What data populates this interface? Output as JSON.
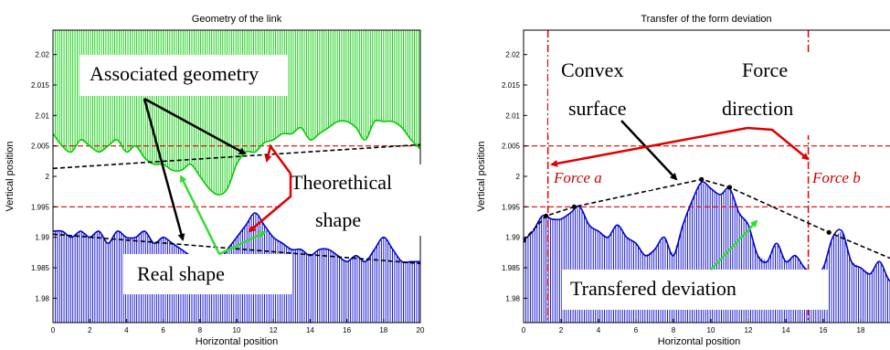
{
  "chart_data": [
    {
      "type": "line",
      "title": "Geometry of the link",
      "xlabel": "Horizontal position",
      "ylabel": "Vertical position",
      "xlim": [
        0,
        20
      ],
      "ylim": [
        1.976,
        2.024
      ],
      "xticks": [
        0,
        2,
        4,
        6,
        8,
        10,
        12,
        14,
        16,
        18,
        20
      ],
      "yticks": [
        1.98,
        1.985,
        1.99,
        1.995,
        2,
        2.005,
        2.01,
        2.015,
        2.02
      ],
      "ytick_labels": [
        "1.98",
        "1.985",
        "1.99",
        "1.995",
        "2",
        "2.005",
        "2.01",
        "2.015",
        "2.02"
      ],
      "reference_lines": [
        2.005,
        1.995
      ],
      "series": [
        {
          "x": [
            0,
            0.5,
            1,
            1.5,
            2,
            2.5,
            3,
            3.5,
            4,
            4.5,
            5,
            5.5,
            6,
            6.5,
            7,
            7.5,
            8,
            8.5,
            9,
            9.5,
            10,
            10.5,
            11,
            11.5,
            12,
            12.5,
            13,
            13.5,
            14,
            14.5,
            15,
            15.5,
            16,
            16.5,
            17,
            17.5,
            18,
            18.5,
            19,
            19.5,
            20
          ],
          "y": [
            2.007,
            2.005,
            2.004,
            2.006,
            2.005,
            2.004,
            2.005,
            2.006,
            2.004,
            2.005,
            2.003,
            2.002,
            2.002,
            2.001,
            2.001,
            2.002,
            2.0,
            1.998,
            1.997,
            1.998,
            2.002,
            2.004,
            2.004,
            2.0055,
            2.006,
            2.007,
            2.007,
            2.008,
            2.006,
            2.007,
            2.008,
            2.009,
            2.009,
            2.008,
            2.006,
            2.009,
            2.009,
            2.009,
            2.008,
            2.006,
            2.0045
          ],
          "color": "#00cc00"
        },
        {
          "x": [
            0,
            0.5,
            1,
            1.5,
            2,
            2.5,
            3,
            3.5,
            4,
            4.5,
            5,
            5.5,
            6,
            6.5,
            7,
            7.5,
            8,
            8.5,
            9,
            9.5,
            10,
            10.5,
            11,
            11.5,
            12,
            12.5,
            13,
            13.5,
            14,
            14.5,
            15,
            15.5,
            16,
            16.5,
            17,
            17.5,
            18,
            18.5,
            19,
            19.5,
            20
          ],
          "y": [
            1.991,
            1.991,
            1.99,
            1.991,
            1.99,
            1.991,
            1.989,
            1.991,
            1.99,
            1.99,
            1.991,
            1.989,
            1.99,
            1.989,
            1.988,
            1.987,
            1.987,
            1.986,
            1.986,
            1.988,
            1.99,
            1.992,
            1.994,
            1.992,
            1.99,
            1.989,
            1.988,
            1.988,
            1.987,
            1.988,
            1.988,
            1.987,
            1.986,
            1.987,
            1.986,
            1.988,
            1.99,
            1.988,
            1.986,
            1.986,
            1.986
          ],
          "color": "#0000cc"
        },
        {
          "x": [
            0,
            20
          ],
          "y": [
            2.0013,
            2.0052
          ],
          "color": "#000000",
          "style": "dashed"
        },
        {
          "x": [
            0,
            20
          ],
          "y": [
            1.9905,
            1.9857
          ],
          "color": "#000000",
          "style": "dashed"
        }
      ],
      "annotations": {
        "associated_geometry": "Associated geometry",
        "theoretical_line1": "Theorethical",
        "theoretical_line2": "shape",
        "real_shape": "Real shape"
      }
    },
    {
      "type": "line",
      "title": "Transfer of the form deviation",
      "xlabel": "Horizontal position",
      "ylabel": "Vertical position",
      "xlim": [
        0,
        20
      ],
      "ylim": [
        1.976,
        2.024
      ],
      "xticks": [
        0,
        2,
        4,
        6,
        8,
        10,
        12,
        14,
        16,
        18,
        20
      ],
      "xtick_labels": [
        "0",
        "2",
        "4",
        "6",
        "8",
        "10",
        "12",
        "14",
        "16",
        "18",
        "20"
      ],
      "yticks": [
        1.98,
        1.985,
        1.99,
        1.995,
        2,
        2.005,
        2.01,
        2.015,
        2.02
      ],
      "ytick_labels": [
        "1.98",
        "1.985",
        "1.99",
        "1.995",
        "2",
        "2.005",
        "2.01",
        "2.015",
        "2.02"
      ],
      "reference_lines": [
        2.005,
        1.995
      ],
      "force_positions": [
        1.3,
        15.2
      ],
      "series": [
        {
          "x": [
            0,
            0.5,
            1,
            1.5,
            2,
            2.5,
            3,
            3.5,
            4,
            4.5,
            5,
            5.5,
            6,
            6.5,
            7,
            7.5,
            8,
            8.5,
            9,
            9.5,
            10,
            10.5,
            11,
            11.5,
            12,
            12.5,
            13,
            13.5,
            14,
            14.5,
            15,
            15.5,
            16,
            16.5,
            17,
            17.5,
            18,
            18.5,
            19,
            19.5,
            20
          ],
          "y": [
            1.9895,
            1.991,
            1.9935,
            1.993,
            1.993,
            1.994,
            1.995,
            1.992,
            1.991,
            1.99,
            1.992,
            1.99,
            1.989,
            1.987,
            1.988,
            1.99,
            1.987,
            1.992,
            1.996,
            1.999,
            1.998,
            1.997,
            1.998,
            1.994,
            1.992,
            1.987,
            1.986,
            1.989,
            1.986,
            1.987,
            1.985,
            1.984,
            1.985,
            1.99,
            1.991,
            1.986,
            1.985,
            1.984,
            1.986,
            1.983,
            1.982
          ],
          "color": "#0000cc"
        },
        {
          "x": [
            0,
            1.2,
            2.7,
            9.5,
            11.0,
            16.3,
            20
          ],
          "y": [
            1.9895,
            1.9935,
            1.995,
            1.9995,
            1.9982,
            1.9908,
            1.986
          ],
          "color": "#000000",
          "style": "dashed"
        }
      ],
      "annotations": {
        "convex_line1": "Convex",
        "convex_line2": "surface",
        "force_line1": "Force",
        "force_line2": "direction",
        "force_a": "Force a",
        "force_b": "Force b",
        "transfered": "Transfered deviation"
      }
    }
  ]
}
